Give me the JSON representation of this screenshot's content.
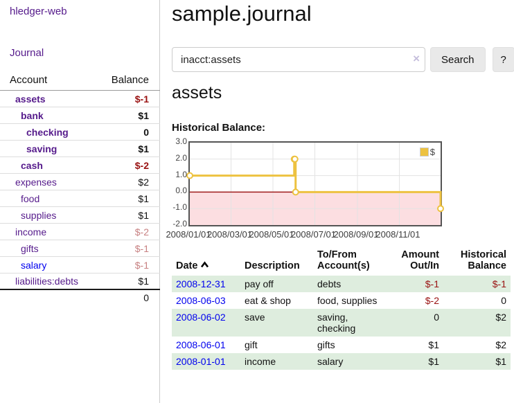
{
  "app": {
    "brand": "hledger-web",
    "nav": {
      "journal": "Journal"
    }
  },
  "sidebar": {
    "header": {
      "account": "Account",
      "balance": "Balance"
    },
    "accounts": [
      {
        "name": "assets",
        "depth": 1,
        "bold": true,
        "link_color": "purple",
        "balance": "$-1",
        "balance_style": "neg-strong"
      },
      {
        "name": "bank",
        "depth": 2,
        "bold": true,
        "link_color": "purple",
        "balance": "$1",
        "balance_style": "pos"
      },
      {
        "name": "checking",
        "depth": 3,
        "bold": true,
        "link_color": "purple",
        "balance": "0",
        "balance_style": "pos"
      },
      {
        "name": "saving",
        "depth": 3,
        "bold": true,
        "link_color": "purple",
        "balance": "$1",
        "balance_style": "pos"
      },
      {
        "name": "cash",
        "depth": 2,
        "bold": true,
        "link_color": "purple",
        "balance": "$-2",
        "balance_style": "neg-strong"
      },
      {
        "name": "expenses",
        "depth": 1,
        "bold": false,
        "link_color": "purple",
        "balance": "$2",
        "balance_style": "pos"
      },
      {
        "name": "food",
        "depth": 2,
        "bold": false,
        "link_color": "purple",
        "balance": "$1",
        "balance_style": "pos"
      },
      {
        "name": "supplies",
        "depth": 2,
        "bold": false,
        "link_color": "purple",
        "balance": "$1",
        "balance_style": "pos"
      },
      {
        "name": "income",
        "depth": 1,
        "bold": false,
        "link_color": "purple",
        "balance": "$-2",
        "balance_style": "neg-faded"
      },
      {
        "name": "gifts",
        "depth": 2,
        "bold": false,
        "link_color": "purple",
        "balance": "$-1",
        "balance_style": "neg-faded"
      },
      {
        "name": "salary",
        "depth": 2,
        "bold": false,
        "link_color": "blue",
        "balance": "$-1",
        "balance_style": "neg-faded"
      },
      {
        "name": "liabilities:debts",
        "depth": 1,
        "bold": false,
        "link_color": "purple",
        "balance": "$1",
        "balance_style": "pos"
      }
    ],
    "total": "0"
  },
  "header": {
    "title": "sample.journal"
  },
  "search": {
    "value": "inacct:assets",
    "clear_icon": "×",
    "button_label": "Search",
    "help_label": "?"
  },
  "account_page": {
    "title": "assets",
    "chart_label": "Historical Balance:"
  },
  "chart_data": {
    "type": "line",
    "style": "step",
    "title": "Historical Balance",
    "xlim": [
      "2008-01-01",
      "2008-12-31"
    ],
    "ylim": [
      -2,
      3
    ],
    "y_ticks": [
      "3.0",
      "2.0",
      "1.0",
      "0.0",
      "-1.0",
      "-2.0"
    ],
    "x_ticks": [
      "2008/01/01",
      "2008/03/01",
      "2008/05/01",
      "2008/07/01",
      "2008/09/01",
      "2008/11/01"
    ],
    "grid": true,
    "legend_position": "top-right",
    "series": [
      {
        "name": "$",
        "color": "#edc240",
        "points": [
          {
            "date": "2008-01-01",
            "value": 1
          },
          {
            "date": "2008-06-01",
            "value": 2
          },
          {
            "date": "2008-06-02",
            "value": 2
          },
          {
            "date": "2008-06-03",
            "value": 0
          },
          {
            "date": "2008-12-31",
            "value": -1
          }
        ]
      }
    ],
    "negative_region_color": "#fcdee1",
    "zero_line_color": "#9e1a1a",
    "grid_color": "#e3e3e3",
    "border_color": "#545454"
  },
  "register": {
    "columns": [
      {
        "label": "Date",
        "sorted": true
      },
      {
        "label": "Description"
      },
      {
        "label": "To/From\nAccount(s)"
      },
      {
        "label": "Amount\nOut/In",
        "align": "right"
      },
      {
        "label": "Historical\nBalance",
        "align": "right"
      }
    ],
    "rows": [
      {
        "date": "2008-12-31",
        "description": "pay off",
        "accounts": "debts",
        "amount": "$-1",
        "amount_neg": true,
        "balance": "$-1",
        "balance_neg": true
      },
      {
        "date": "2008-06-03",
        "description": "eat & shop",
        "accounts": "food, supplies",
        "amount": "$-2",
        "amount_neg": true,
        "balance": "0",
        "balance_neg": false
      },
      {
        "date": "2008-06-02",
        "description": "save",
        "accounts": "saving,\nchecking",
        "amount": "0",
        "amount_neg": false,
        "balance": "$2",
        "balance_neg": false
      },
      {
        "date": "2008-06-01",
        "description": "gift",
        "accounts": "gifts",
        "amount": "$1",
        "amount_neg": false,
        "balance": "$2",
        "balance_neg": false
      },
      {
        "date": "2008-01-01",
        "description": "income",
        "accounts": "salary",
        "amount": "$1",
        "amount_neg": false,
        "balance": "$1",
        "balance_neg": false
      }
    ]
  },
  "icons": {
    "sort_ascending": "∧",
    "clear_search": "×"
  },
  "colors": {
    "link_purple": "#551A8B",
    "link_blue": "#0000EE",
    "negative_strong": "#991111",
    "negative_faded": "#c78081",
    "row_green": "#DEEDDE",
    "series_gold": "#edc240",
    "button_bg": "#e9e9e9"
  }
}
